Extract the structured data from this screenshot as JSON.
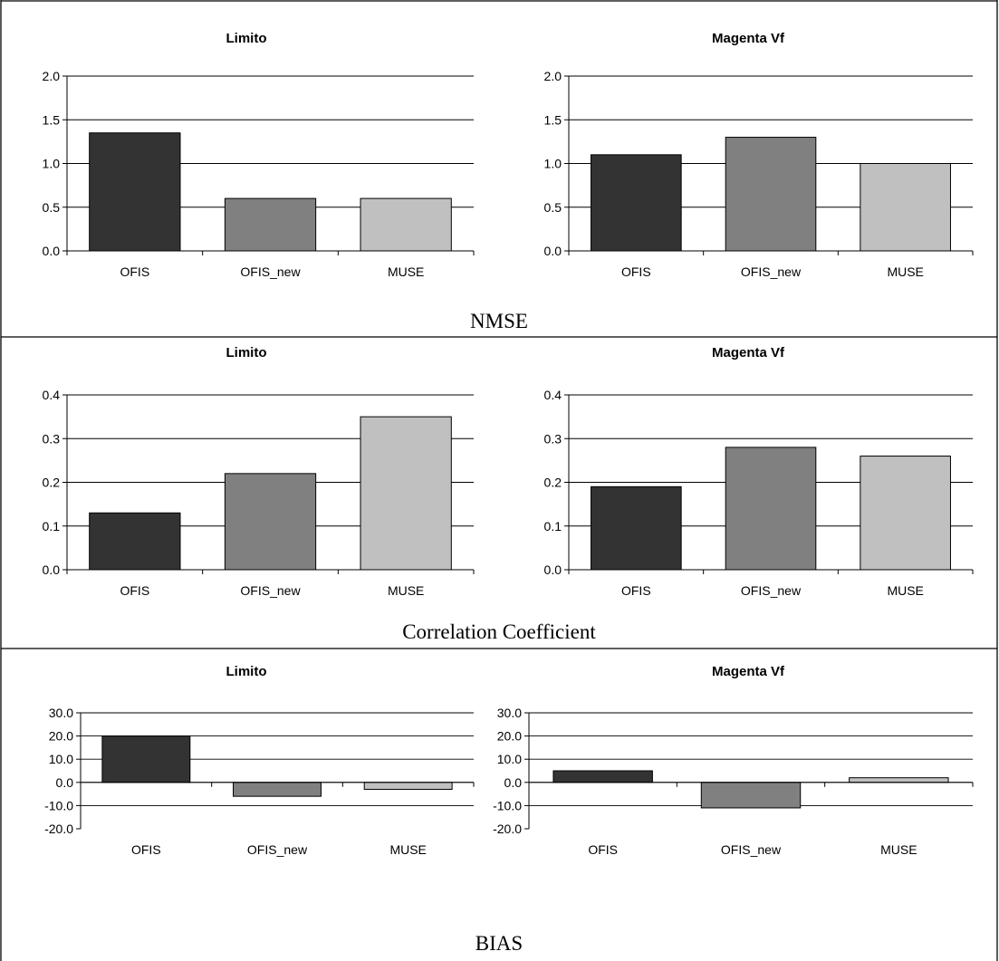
{
  "figure": {
    "colors": {
      "OFIS": "#333333",
      "OFIS_new": "#808080",
      "MUSE": "#c0c0c0"
    },
    "sections": [
      {
        "label": "NMSE"
      },
      {
        "label": "Correlation Coefficient"
      },
      {
        "label": "BIAS"
      }
    ]
  },
  "chart_data": [
    {
      "type": "bar",
      "metric": "NMSE",
      "title": "Limito",
      "categories": [
        "OFIS",
        "OFIS_new",
        "MUSE"
      ],
      "values": [
        1.35,
        0.6,
        0.6
      ],
      "ylim": [
        0,
        2.0
      ],
      "yticks": [
        0,
        0.5,
        1.0,
        1.5,
        2.0
      ],
      "decimals": 1,
      "grid": true,
      "xlabel": "",
      "ylabel": ""
    },
    {
      "type": "bar",
      "metric": "NMSE",
      "title": "Magenta Vf",
      "categories": [
        "OFIS",
        "OFIS_new",
        "MUSE"
      ],
      "values": [
        1.1,
        1.3,
        1.0
      ],
      "ylim": [
        0,
        2.0
      ],
      "yticks": [
        0,
        0.5,
        1.0,
        1.5,
        2.0
      ],
      "decimals": 1,
      "grid": true,
      "xlabel": "",
      "ylabel": ""
    },
    {
      "type": "bar",
      "metric": "Correlation Coefficient",
      "title": "Limito",
      "categories": [
        "OFIS",
        "OFIS_new",
        "MUSE"
      ],
      "values": [
        0.13,
        0.22,
        0.35
      ],
      "ylim": [
        0,
        0.4
      ],
      "yticks": [
        0,
        0.1,
        0.2,
        0.3,
        0.4
      ],
      "decimals": 1,
      "grid": true,
      "xlabel": "",
      "ylabel": ""
    },
    {
      "type": "bar",
      "metric": "Correlation Coefficient",
      "title": "Magenta Vf",
      "categories": [
        "OFIS",
        "OFIS_new",
        "MUSE"
      ],
      "values": [
        0.19,
        0.28,
        0.26
      ],
      "ylim": [
        0,
        0.4
      ],
      "yticks": [
        0,
        0.1,
        0.2,
        0.3,
        0.4
      ],
      "decimals": 1,
      "grid": true,
      "xlabel": "",
      "ylabel": ""
    },
    {
      "type": "bar",
      "metric": "BIAS",
      "title": "Limito",
      "categories": [
        "OFIS",
        "OFIS_new",
        "MUSE"
      ],
      "values": [
        20.0,
        -6.0,
        -3.0
      ],
      "ylim": [
        -20.0,
        30.0
      ],
      "yticks": [
        -20,
        -10,
        0,
        10,
        20,
        30
      ],
      "decimals": 1,
      "grid": true,
      "xlabel": "",
      "ylabel": ""
    },
    {
      "type": "bar",
      "metric": "BIAS",
      "title": "Magenta Vf",
      "categories": [
        "OFIS",
        "OFIS_new",
        "MUSE"
      ],
      "values": [
        5.0,
        -11.0,
        2.0
      ],
      "ylim": [
        -20.0,
        30.0
      ],
      "yticks": [
        -20,
        -10,
        0,
        10,
        20,
        30
      ],
      "decimals": 1,
      "grid": true,
      "xlabel": "",
      "ylabel": ""
    }
  ]
}
